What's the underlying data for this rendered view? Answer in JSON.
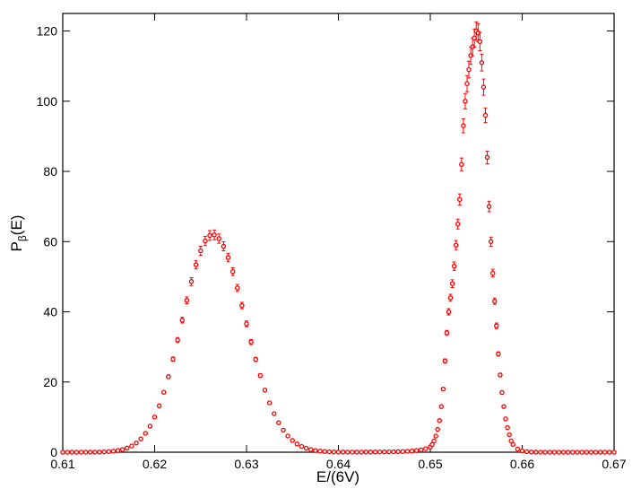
{
  "chart_data": {
    "type": "scatter",
    "xlabel": "E/(6V)",
    "ylabel": [
      "P",
      "β",
      "(E)"
    ],
    "color": "#ff0000",
    "xlim": [
      0.61,
      0.67
    ],
    "xticks": [
      0.61,
      0.62,
      0.63,
      0.64,
      0.65,
      0.66,
      0.67
    ],
    "ylim": [
      0,
      125
    ],
    "yticks": [
      0,
      20,
      40,
      60,
      80,
      100,
      120
    ],
    "x": [
      0.61,
      0.6105,
      0.611,
      0.6115,
      0.612,
      0.6125,
      0.613,
      0.6135,
      0.614,
      0.6145,
      0.615,
      0.6155,
      0.616,
      0.6165,
      0.617,
      0.6175,
      0.618,
      0.6185,
      0.619,
      0.6195,
      0.62,
      0.6205,
      0.621,
      0.6215,
      0.622,
      0.6225,
      0.623,
      0.6235,
      0.624,
      0.6245,
      0.625,
      0.6255,
      0.626,
      0.6265,
      0.627,
      0.6275,
      0.628,
      0.6285,
      0.629,
      0.6295,
      0.63,
      0.6305,
      0.631,
      0.6315,
      0.632,
      0.6325,
      0.633,
      0.6335,
      0.634,
      0.6345,
      0.635,
      0.6355,
      0.636,
      0.6365,
      0.637,
      0.6375,
      0.638,
      0.6385,
      0.639,
      0.6395,
      0.64,
      0.6405,
      0.641,
      0.6415,
      0.642,
      0.6425,
      0.643,
      0.6435,
      0.644,
      0.6445,
      0.645,
      0.6455,
      0.646,
      0.6465,
      0.647,
      0.6475,
      0.648,
      0.6485,
      0.649,
      0.6495,
      0.65,
      0.6502,
      0.6504,
      0.6506,
      0.6508,
      0.651,
      0.6512,
      0.6514,
      0.6516,
      0.6518,
      0.652,
      0.6522,
      0.6524,
      0.6526,
      0.6528,
      0.653,
      0.6532,
      0.6534,
      0.6536,
      0.6538,
      0.654,
      0.6542,
      0.6544,
      0.6546,
      0.6548,
      0.655,
      0.6552,
      0.6554,
      0.6556,
      0.6558,
      0.656,
      0.6562,
      0.6564,
      0.6566,
      0.6568,
      0.657,
      0.6572,
      0.6574,
      0.6576,
      0.6578,
      0.658,
      0.6582,
      0.6584,
      0.6586,
      0.6588,
      0.659,
      0.6595,
      0.66,
      0.6605,
      0.661,
      0.6615,
      0.662,
      0.6625,
      0.663,
      0.6635,
      0.664,
      0.6645,
      0.665,
      0.6655,
      0.666,
      0.6665,
      0.667,
      0.6675,
      0.668,
      0.6685,
      0.669,
      0.6695,
      0.67
    ],
    "values": [
      0,
      0,
      0,
      0,
      0.01,
      0.01,
      0.02,
      0.03,
      0.06,
      0.1,
      0.18,
      0.29,
      0.48,
      0.75,
      1.17,
      1.77,
      2.62,
      3.79,
      5.37,
      7.41,
      10.03,
      13.22,
      17.07,
      21.52,
      26.53,
      31.95,
      37.6,
      43.26,
      48.63,
      53.42,
      57.37,
      60.2,
      61.75,
      61.91,
      60.84,
      58.65,
      55.46,
      51.44,
      46.8,
      41.78,
      36.57,
      31.39,
      26.44,
      21.86,
      17.71,
      14.07,
      10.97,
      8.39,
      6.29,
      4.63,
      3.34,
      2.36,
      1.64,
      1.12,
      0.75,
      0.49,
      0.32,
      0.2,
      0.12,
      0.08,
      0.06,
      0.05,
      0.04,
      0.04,
      0.04,
      0.04,
      0.05,
      0.05,
      0.06,
      0.07,
      0.08,
      0.1,
      0.12,
      0.15,
      0.2,
      0.26,
      0.35,
      0.48,
      0.68,
      1,
      1.5,
      2.2,
      3.2,
      4.6,
      6.5,
      9,
      13,
      18,
      26,
      34,
      40,
      44,
      48,
      53,
      59,
      65,
      72,
      82,
      93,
      100,
      105,
      109,
      113,
      115.5,
      118,
      120,
      119.5,
      117,
      111,
      104,
      96,
      84,
      70,
      60,
      51,
      43,
      36,
      28,
      22,
      17,
      13,
      9.5,
      7,
      5,
      3.2,
      2.2,
      0.9,
      0.4,
      0.15,
      0.06,
      0.02,
      0.01,
      0,
      0,
      0,
      0,
      0,
      0,
      0,
      0,
      0,
      0,
      0,
      0,
      0,
      0,
      0,
      0
    ],
    "errors": [
      0,
      0,
      0,
      0,
      0,
      0,
      0,
      0,
      0,
      0,
      0,
      0,
      0,
      0,
      0,
      0,
      0.1,
      0.1,
      0.1,
      0.2,
      0.2,
      0.3,
      0.4,
      0.5,
      0.6,
      0.7,
      0.8,
      1,
      1.1,
      1.2,
      1.3,
      1.3,
      1.4,
      1.4,
      1.3,
      1.3,
      1.2,
      1.1,
      1,
      0.9,
      0.8,
      0.7,
      0.6,
      0.5,
      0.4,
      0.3,
      0.2,
      0.2,
      0.1,
      0.1,
      0.1,
      0.1,
      0,
      0,
      0,
      0,
      0,
      0,
      0,
      0,
      0,
      0,
      0,
      0,
      0,
      0,
      0,
      0,
      0,
      0,
      0,
      0,
      0,
      0,
      0,
      0,
      0,
      0,
      0,
      0,
      0,
      0,
      0.1,
      0.1,
      0.1,
      0.2,
      0.3,
      0.4,
      0.6,
      0.7,
      0.9,
      1,
      1.1,
      1.2,
      1.3,
      1.4,
      1.6,
      1.8,
      2,
      2.2,
      2.3,
      2.4,
      2.5,
      2.5,
      2.6,
      2.6,
      2.6,
      2.6,
      2.4,
      2.3,
      2.1,
      1.8,
      1.5,
      1.3,
      1.1,
      0.9,
      0.8,
      0.6,
      0.5,
      0.4,
      0.3,
      0.2,
      0.2,
      0.1,
      0.1,
      0,
      0,
      0,
      0,
      0,
      0,
      0,
      0,
      0,
      0,
      0,
      0,
      0,
      0,
      0,
      0,
      0,
      0,
      0,
      0,
      0,
      0,
      0
    ]
  }
}
